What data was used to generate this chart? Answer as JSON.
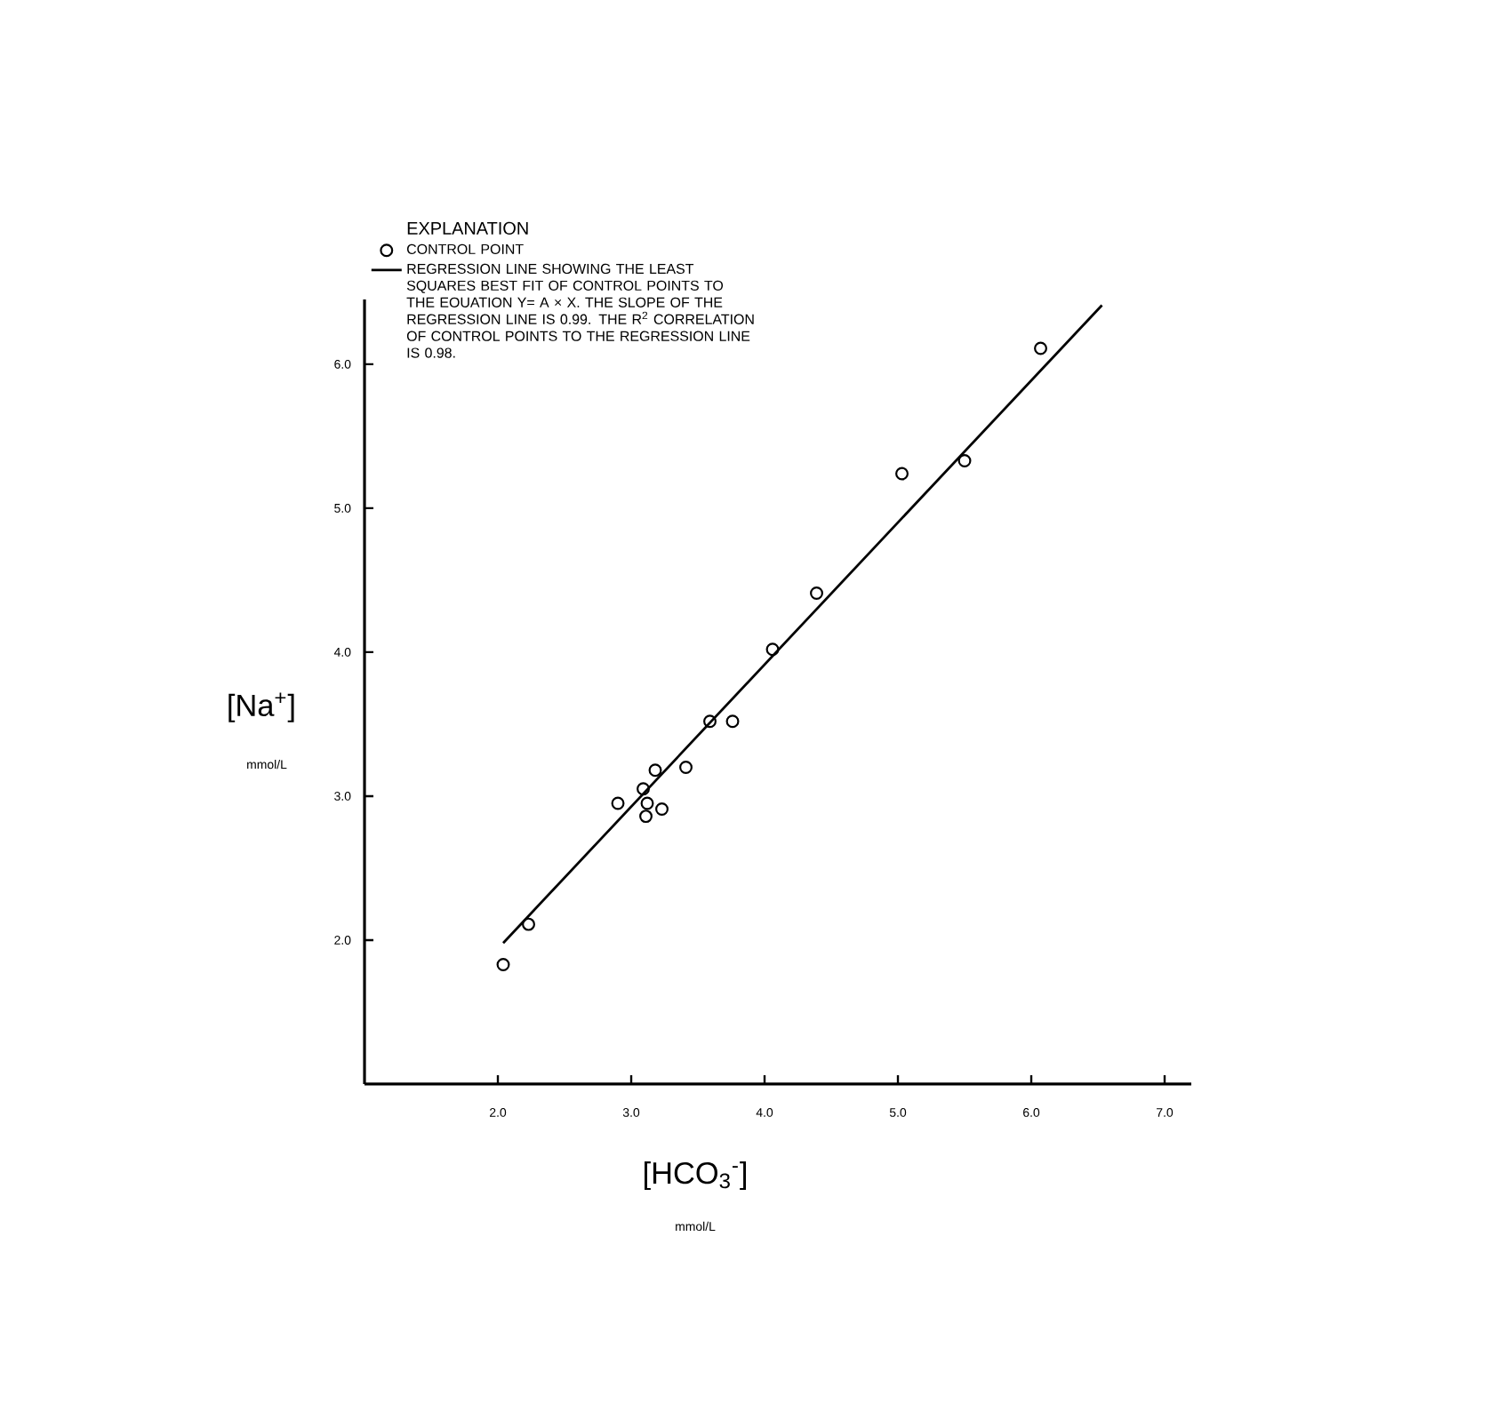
{
  "chart_data": {
    "type": "scatter",
    "xlabel": "[HCO$_{3}$$^{-}$]",
    "ylabel": "[Na$^{+}$]",
    "legend_title": "EXPLANATION",
    "annotations": [
      "mmol/L",
      "mmol/L"
    ],
    "series": [
      {
        "name": "CONTROL POINT",
        "marker": "circle",
        "color": "#000000",
        "x": [
          2.04,
          2.23,
          2.9,
          3.09,
          3.12,
          3.11,
          3.18,
          3.23,
          3.41,
          3.59,
          3.76,
          4.06,
          4.39,
          5.03,
          5.5,
          6.07
        ],
        "values": [
          1.83,
          2.11,
          2.95,
          3.05,
          2.95,
          2.86,
          3.18,
          2.91,
          3.2,
          3.52,
          3.52,
          4.02,
          4.41,
          5.24,
          5.33,
          6.11
        ]
      },
      {
        "name": "REGRESSION LINE SHOWING THE LEAST SQUARES BEST FIT OF CONTROL POINTS TO THE EOUATION Y= A × X. THE SLOPE OF THE REGRESSION LINE IS 0.99. THE R$^{2}$ CORRELATION OF CONTROL POINTS TO THE REGRESSION LINE IS 0.98.",
        "type": "line",
        "color": "#000000",
        "x": [
          2.04,
          6.53
        ],
        "values": [
          1.98,
          6.41
        ]
      }
    ],
    "xlim": [
      1.0,
      7.2
    ],
    "ylim": [
      1.0,
      6.45
    ],
    "xticks": [
      {
        "value": 2,
        "label": "2.0"
      },
      {
        "value": 3,
        "label": "3.0"
      },
      {
        "value": 4,
        "label": "4.0"
      },
      {
        "value": 5,
        "label": "5.0"
      },
      {
        "value": 6,
        "label": "6.0"
      },
      {
        "value": 7,
        "label": "7.0"
      }
    ],
    "yticks": [
      {
        "value": 2,
        "label": "2.0"
      },
      {
        "value": 3,
        "label": "3.0"
      },
      {
        "value": 4,
        "label": "4.0"
      },
      {
        "value": 5,
        "label": "5.0"
      },
      {
        "value": 6,
        "label": "6.0"
      }
    ],
    "legend": "top left",
    "grid": false
  }
}
